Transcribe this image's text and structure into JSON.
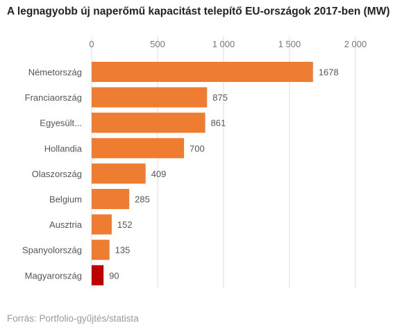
{
  "title": "A legnagyobb új naperőmű kapacitást telepítő EU-országok 2017-ben (MW)",
  "source": "Forrás: Portfolio-gyűjtés/statista",
  "chart_data": {
    "type": "bar",
    "orientation": "horizontal",
    "title": "A legnagyobb új naperőmű kapacitást telepítő EU-országok 2017-ben (MW)",
    "categories": [
      "Németország",
      "Franciaország",
      "Egyesült...",
      "Hollandia",
      "Olaszország",
      "Belgium",
      "Ausztria",
      "Spanyolország",
      "Magyarország"
    ],
    "values": [
      1678,
      875,
      861,
      700,
      409,
      285,
      152,
      135,
      90
    ],
    "x_ticks": [
      0,
      500,
      1000,
      1500,
      2000
    ],
    "x_tick_labels": [
      "0",
      "500",
      "1 000",
      "1 500",
      "2 000"
    ],
    "xlim": [
      0,
      2000
    ],
    "grid": true,
    "colors": {
      "bar": "#ee7d31",
      "highlight": "#c00000",
      "grid": "#dddddd"
    },
    "highlight_category": "Magyarország"
  }
}
